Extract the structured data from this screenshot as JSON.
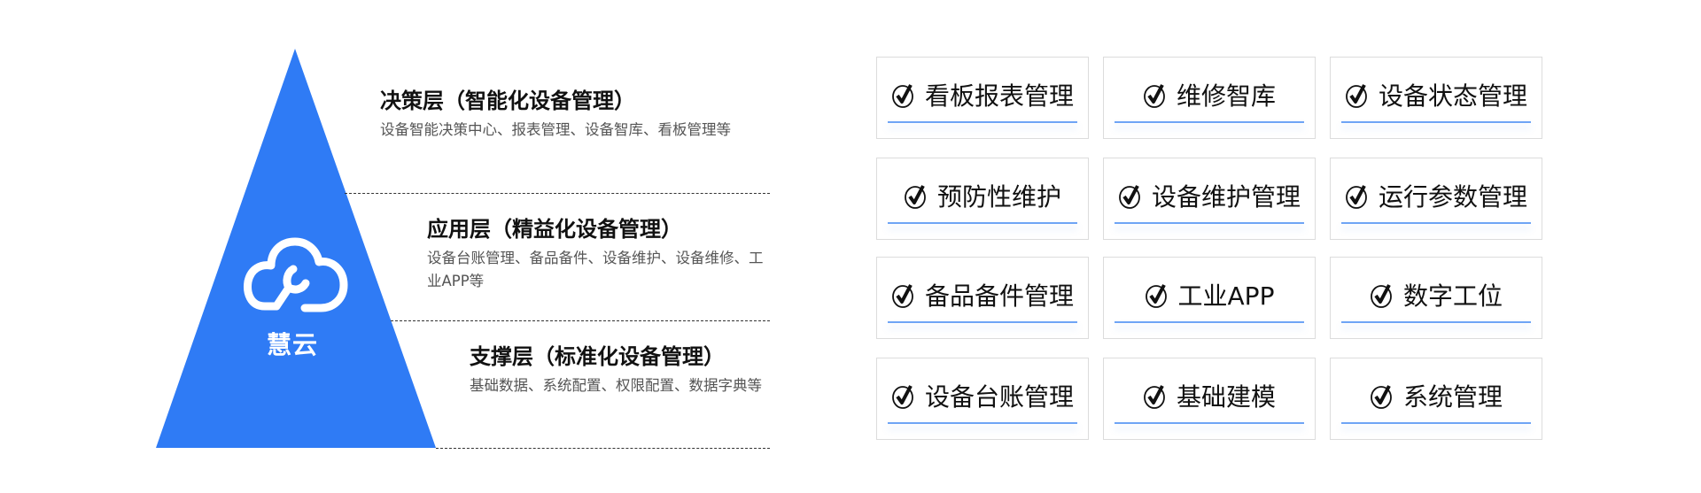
{
  "brand": {
    "name": "慧云",
    "color": "#2f7bf5",
    "icon": "cloud-wrench-icon"
  },
  "layers": [
    {
      "title": "决策层（智能化设备管理）",
      "desc": "设备智能决策中心、报表管理、设备智库、看板管理等"
    },
    {
      "title": "应用层（精益化设备管理）",
      "desc": "设备台账管理、备品备件、设备维护、设备维修、工业APP等"
    },
    {
      "title": "支撑层（标准化设备管理）",
      "desc": "基础数据、系统配置、权限配置、数据字典等"
    }
  ],
  "modules": [
    "看板报表管理",
    "维修智库",
    "设备状态管理",
    "预防性维护",
    "设备维护管理",
    "运行参数管理",
    "备品备件管理",
    "工业APP",
    "数字工位",
    "设备台账管理",
    "基础建模",
    "系统管理"
  ],
  "module_icon": "check-circle-icon",
  "accent": "#6ea4f5"
}
